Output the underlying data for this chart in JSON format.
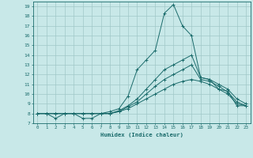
{
  "xlabel": "Humidex (Indice chaleur)",
  "background_color": "#c8e8e8",
  "grid_color": "#a0c8c8",
  "line_color": "#1a6b6b",
  "xlim": [
    -0.5,
    23.5
  ],
  "ylim": [
    7,
    19.5
  ],
  "xticks": [
    0,
    1,
    2,
    3,
    4,
    5,
    6,
    7,
    8,
    9,
    10,
    11,
    12,
    13,
    14,
    15,
    16,
    17,
    18,
    19,
    20,
    21,
    22,
    23
  ],
  "yticks": [
    7,
    8,
    9,
    10,
    11,
    12,
    13,
    14,
    15,
    16,
    17,
    18,
    19
  ],
  "curves": [
    [
      8.0,
      8.0,
      7.5,
      8.0,
      8.0,
      7.5,
      7.5,
      8.0,
      8.2,
      8.5,
      9.8,
      12.5,
      13.5,
      14.5,
      18.3,
      19.2,
      17.0,
      16.0,
      11.7,
      11.5,
      10.5,
      10.3,
      8.8,
      8.8
    ],
    [
      8.0,
      8.0,
      8.0,
      8.0,
      8.0,
      8.0,
      8.0,
      8.0,
      8.0,
      8.3,
      8.8,
      9.5,
      10.5,
      11.5,
      12.5,
      13.0,
      13.5,
      14.0,
      11.7,
      11.5,
      11.0,
      10.5,
      9.5,
      9.0
    ],
    [
      8.0,
      8.0,
      8.0,
      8.0,
      8.0,
      8.0,
      8.0,
      8.0,
      8.0,
      8.2,
      8.7,
      9.2,
      10.0,
      10.8,
      11.5,
      12.0,
      12.5,
      13.0,
      11.5,
      11.3,
      10.8,
      10.2,
      9.2,
      8.8
    ],
    [
      8.0,
      8.0,
      8.0,
      8.0,
      8.0,
      8.0,
      8.0,
      8.0,
      8.0,
      8.2,
      8.5,
      9.0,
      9.5,
      10.0,
      10.5,
      11.0,
      11.3,
      11.5,
      11.3,
      11.0,
      10.5,
      10.0,
      9.0,
      8.8
    ]
  ]
}
